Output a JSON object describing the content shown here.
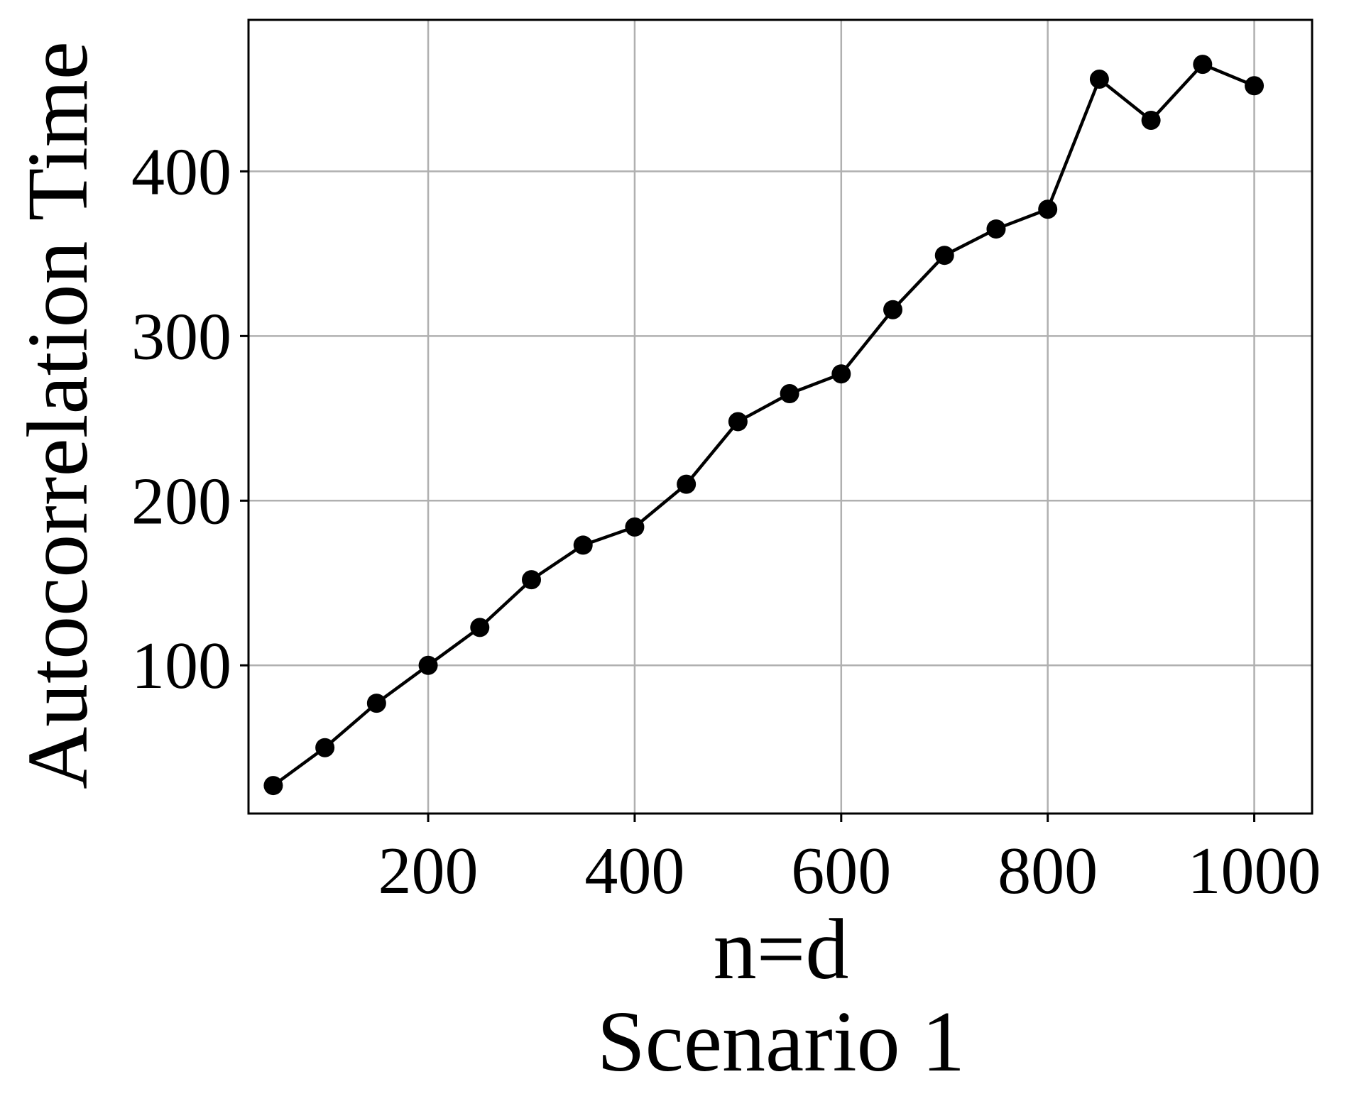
{
  "chart_data": {
    "type": "line",
    "title": "",
    "xlabel": "n=d",
    "caption": "Scenario 1",
    "ylabel": "Autocorrelation Time",
    "xlim": [
      26,
      1056
    ],
    "ylim": [
      10,
      492
    ],
    "xticks": [
      200,
      400,
      600,
      800,
      1000
    ],
    "yticks": [
      100,
      200,
      300,
      400
    ],
    "grid": true,
    "legend": "none",
    "line_color": "#000000",
    "grid_color": "#b0b0b0",
    "series": [
      {
        "x": [
          50,
          100,
          150,
          200,
          250,
          300,
          350,
          400,
          450,
          500,
          550,
          600,
          650,
          700,
          750,
          800,
          850,
          900,
          950,
          1000
        ],
        "values": [
          27,
          50,
          77,
          100,
          123,
          152,
          173,
          184,
          210,
          248,
          265,
          277,
          316,
          349,
          365,
          377,
          456,
          431,
          465,
          452
        ]
      }
    ]
  }
}
